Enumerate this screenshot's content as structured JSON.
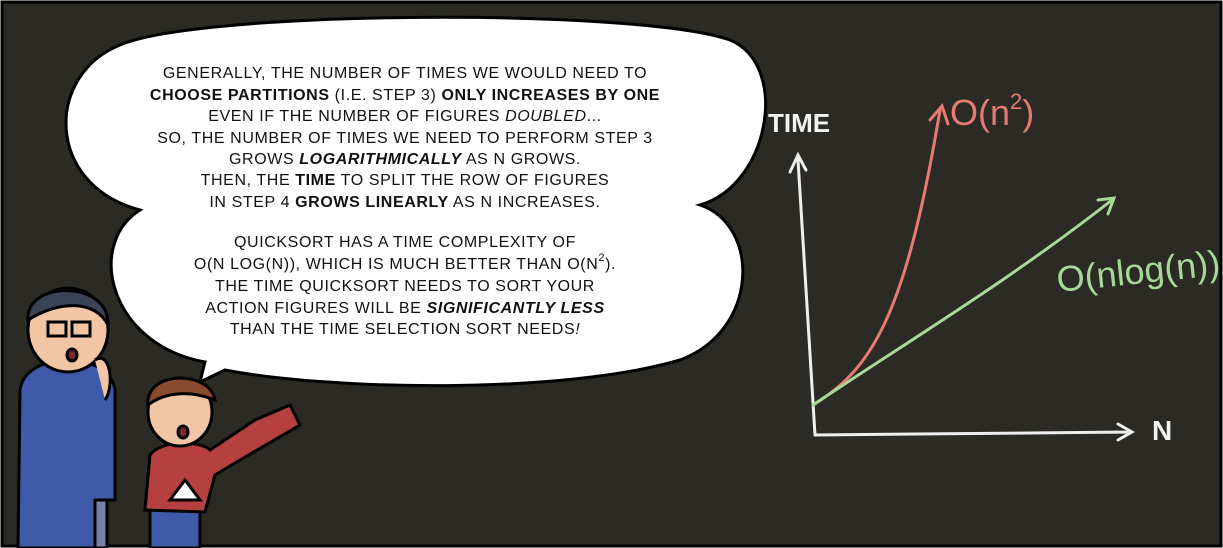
{
  "bubble": {
    "lines": [
      [
        {
          "text": "GENERALLY, THE NUMBER OF TIMES WE WOULD NEED TO"
        }
      ],
      [
        {
          "text": "CHOOSE PARTITIONS",
          "style": "bold"
        },
        {
          "text": " (I.E. STEP 3) "
        },
        {
          "text": "ONLY INCREASES BY ONE",
          "style": "bold"
        }
      ],
      [
        {
          "text": "EVEN IF THE NUMBER OF FIGURES "
        },
        {
          "text": "DOUBLED",
          "style": "italic"
        },
        {
          "text": "..."
        }
      ],
      [
        {
          "text": "SO, THE NUMBER OF TIMES WE NEED TO PERFORM STEP 3"
        }
      ],
      [
        {
          "text": "GROWS "
        },
        {
          "text": "LOGARITHMICALLY",
          "style": "bold-italic"
        },
        {
          "text": " AS N GROWS."
        }
      ],
      [
        {
          "text": "THEN, THE "
        },
        {
          "text": "TIME",
          "style": "bold"
        },
        {
          "text": " TO SPLIT THE ROW OF FIGURES"
        }
      ],
      [
        {
          "text": "IN STEP 4 "
        },
        {
          "text": "GROWS LINEARLY",
          "style": "bold"
        },
        {
          "text": " AS N INCREASES."
        }
      ],
      [
        {
          "text": "QUICKSORT HAS A TIME COMPLEXITY OF"
        }
      ],
      [
        {
          "text": "O(N LOG(N)), WHICH IS MUCH BETTER THAN O(N"
        },
        {
          "text": "2",
          "style": "sup"
        },
        {
          "text": ")."
        }
      ],
      [
        {
          "text": "THE TIME QUICKSORT NEEDS TO SORT YOUR"
        }
      ],
      [
        {
          "text": "ACTION FIGURES WILL BE "
        },
        {
          "text": "SIGNIFICANTLY LESS",
          "style": "bold-italic"
        }
      ],
      [
        {
          "text": "THAN THE TIME SELECTION SORT NEEDS"
        },
        {
          "text": "!",
          "style": "italic"
        }
      ]
    ]
  },
  "chalkboard": {
    "y_label": "TIME",
    "x_label": "N",
    "curve_quadratic": {
      "label": "O(n",
      "sup": "2",
      "close": ")"
    },
    "curve_nlogn": {
      "label": "O(nlog(n))"
    }
  }
}
